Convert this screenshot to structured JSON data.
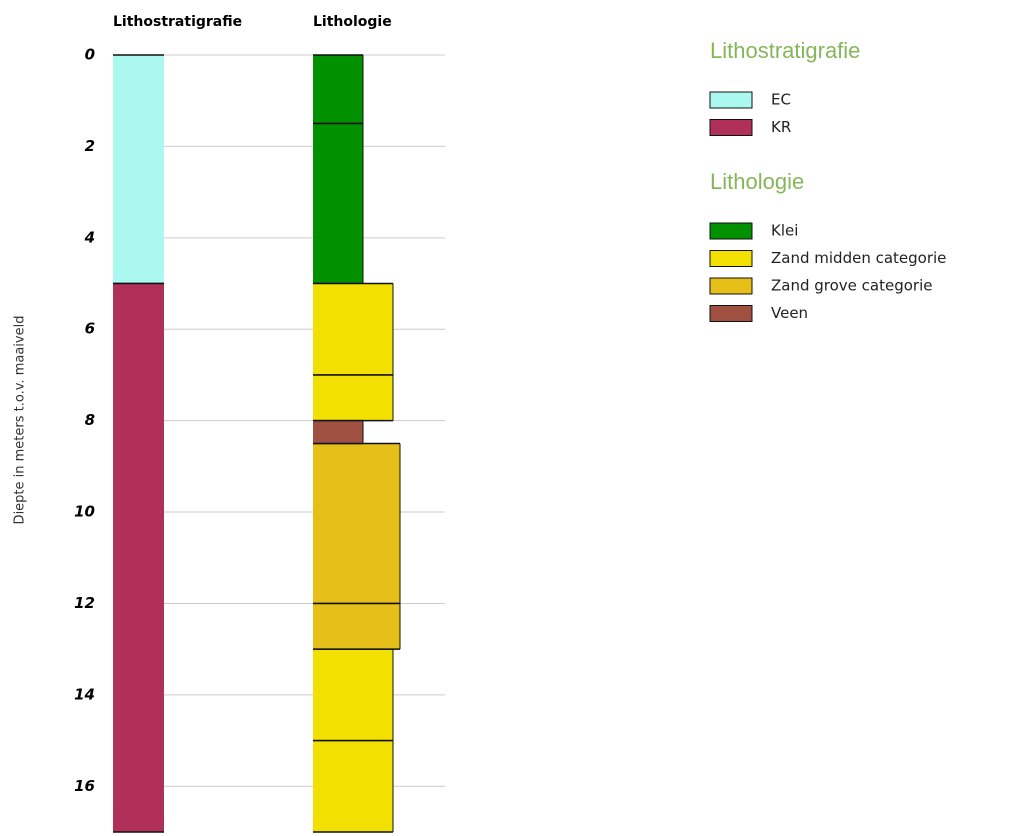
{
  "chart_data": {
    "type": "borehole",
    "y_label": "Diepte in meters t.o.v. maaiveld",
    "ylim": [
      0,
      17
    ],
    "yticks": [
      0,
      2,
      4,
      6,
      8,
      10,
      12,
      14,
      16
    ],
    "grid": true,
    "columns": [
      {
        "title": "Lithostratigrafie",
        "units": [
          {
            "name": "EC",
            "color": "#aaf8f0",
            "intervals": [
              [
                0,
                5
              ]
            ]
          },
          {
            "name": "KR",
            "color": "#b0305a",
            "intervals": [
              [
                5,
                17
              ]
            ]
          }
        ]
      },
      {
        "title": "Lithologie",
        "units": [
          {
            "name": "Klei",
            "color": "#009000",
            "intervals": [
              [
                0,
                1.5
              ],
              [
                1.5,
                5
              ]
            ]
          },
          {
            "name": "Zand midden categorie",
            "color": "#f2e000",
            "intervals": [
              [
                5,
                7
              ],
              [
                7,
                8
              ],
              [
                13,
                15
              ],
              [
                15,
                17
              ]
            ]
          },
          {
            "name": "Zand grove categorie",
            "color": "#e6c018",
            "intervals": [
              [
                8.5,
                12
              ],
              [
                12,
                13
              ]
            ]
          },
          {
            "name": "Veen",
            "color": "#a05040",
            "intervals": [
              [
                8,
                8.5
              ]
            ]
          }
        ]
      }
    ]
  }
}
